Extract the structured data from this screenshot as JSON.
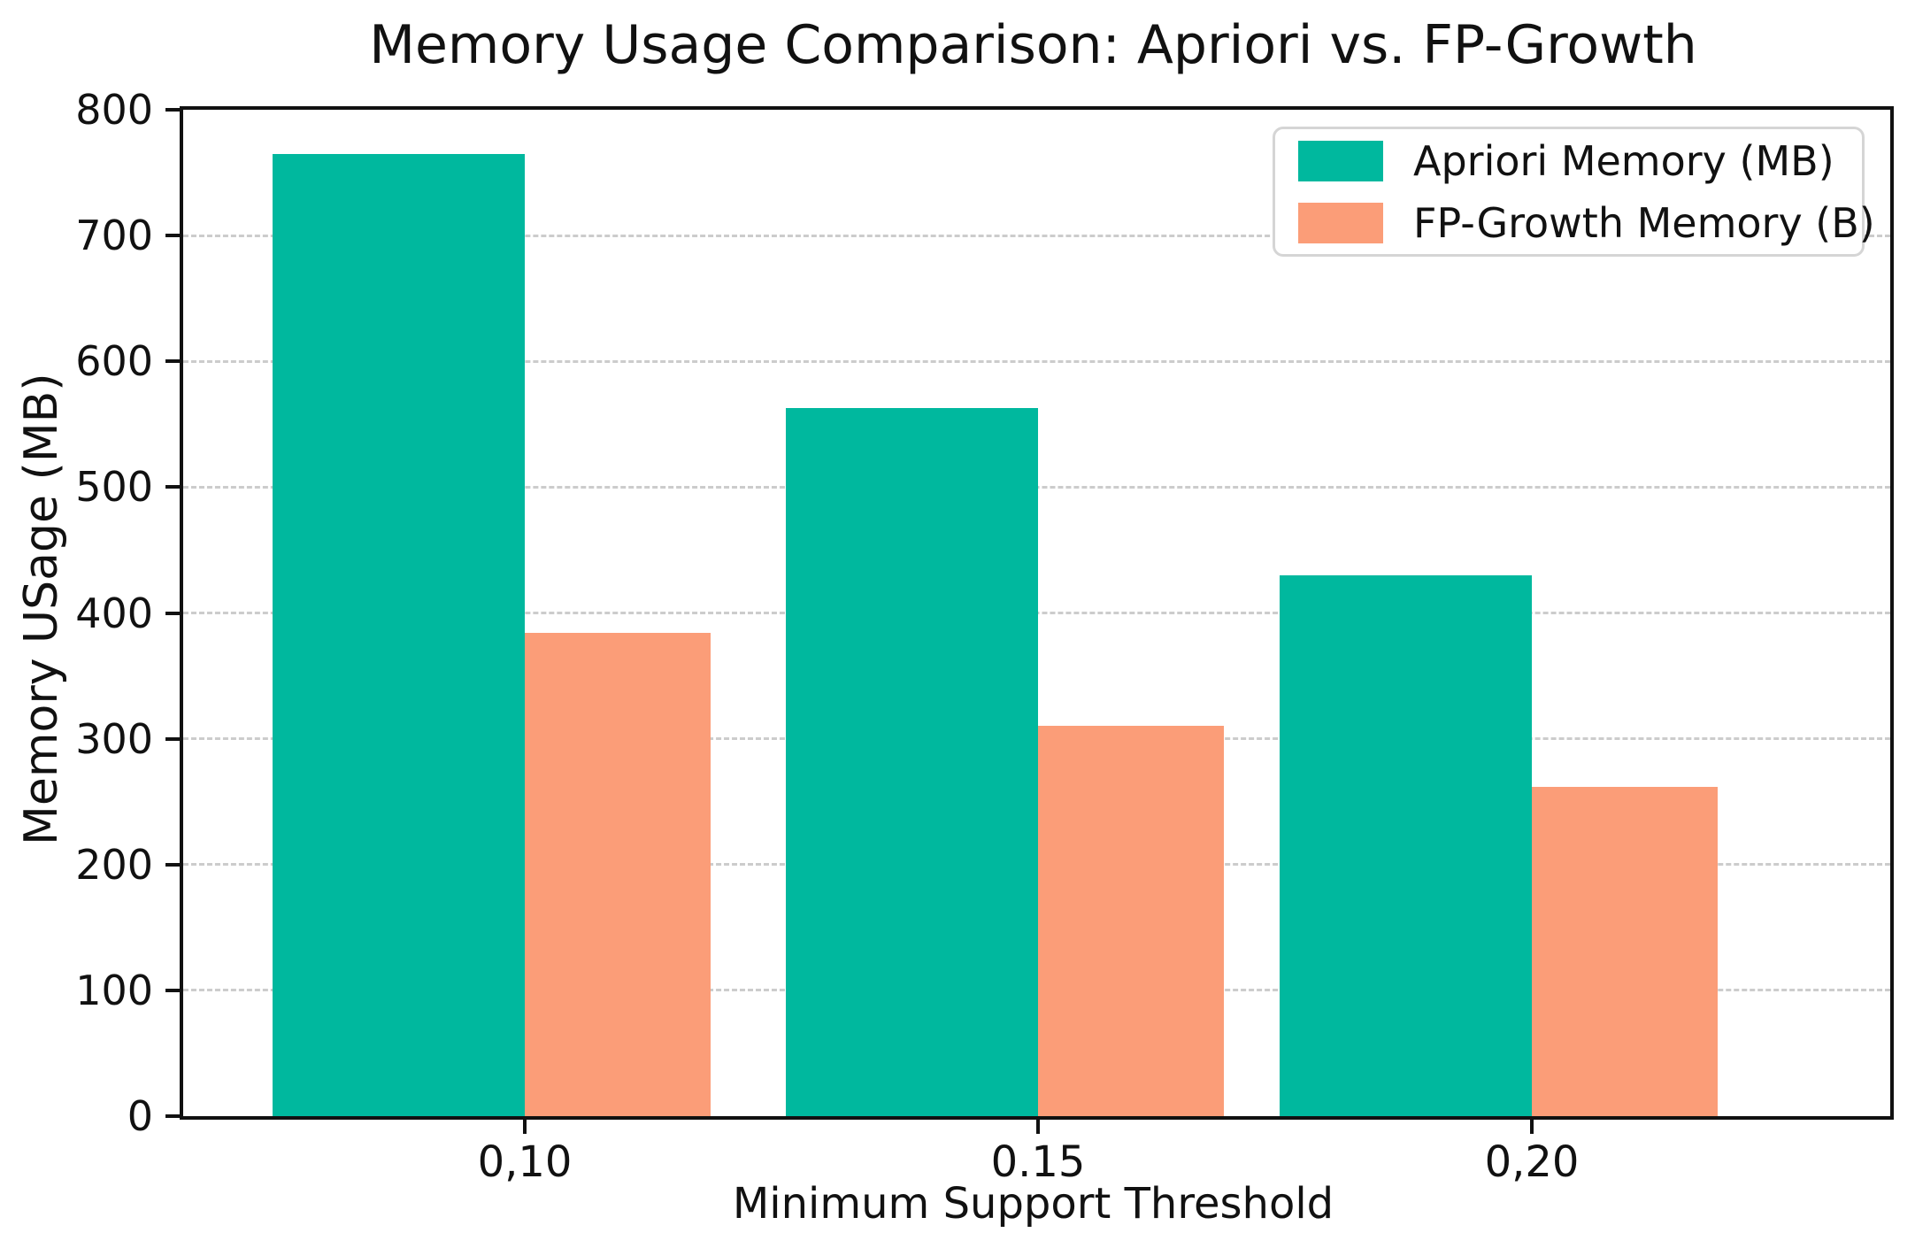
{
  "chart_data": {
    "type": "bar",
    "title": "Memory Usage Comparison: Apriori vs. FP-Growth",
    "xlabel": "Minimum Support Threshold",
    "ylabel": "Memory USage (MB)",
    "categories": [
      "0,10",
      "0.15",
      "0,20"
    ],
    "series": [
      {
        "name": "Apriori Memory (MB)",
        "color": "#00b89e",
        "values": [
          765,
          563,
          430
        ]
      },
      {
        "name": "FP-Growth Memory (B)",
        "color": "#fb9d78",
        "values": [
          384,
          310,
          262
        ]
      }
    ],
    "ylim": [
      0,
      800
    ],
    "yticks": [
      0,
      100,
      200,
      300,
      400,
      500,
      600,
      700,
      800
    ],
    "grid": "horizontal-dashed",
    "grid_color": "#cccccc",
    "spine_color": "#111111",
    "background_color": "#ffffff",
    "legend_position": "top-right"
  }
}
